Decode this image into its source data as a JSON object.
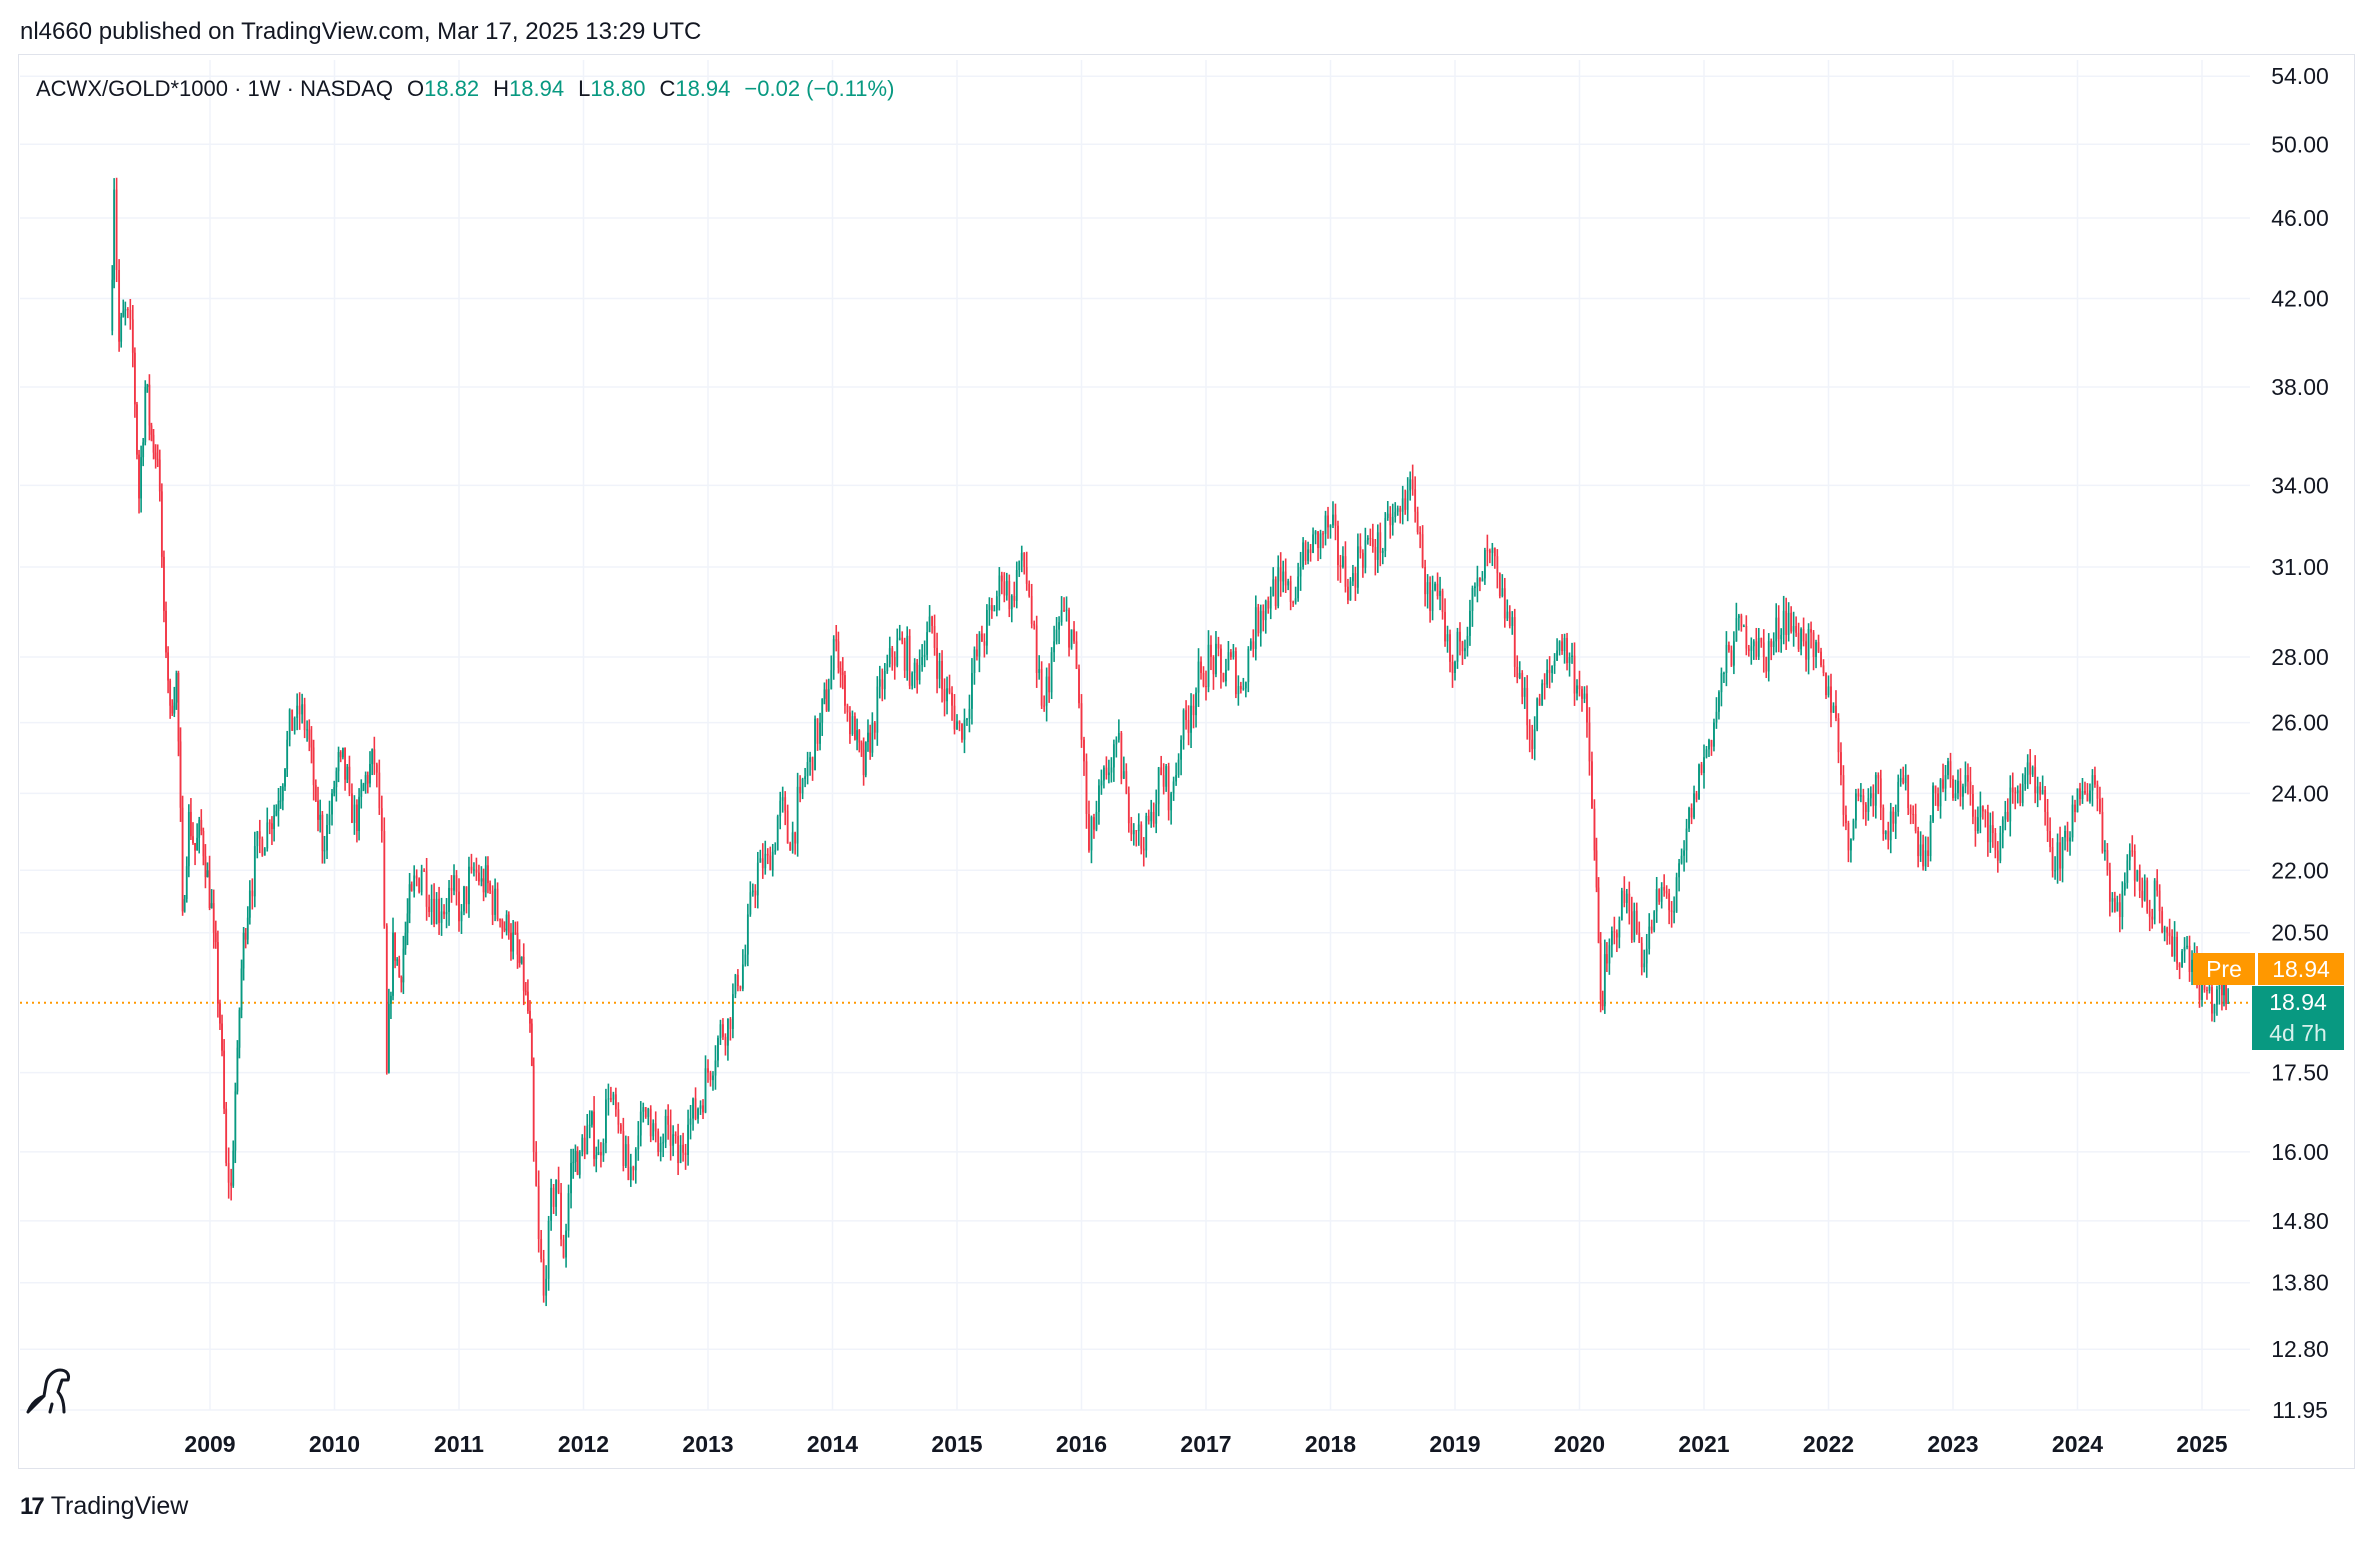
{
  "header": {
    "publisher_text": "nl4660 published on TradingView.com, Mar 17, 2025 13:29 UTC"
  },
  "symbol": {
    "name": "ACWX/GOLD*1000 · 1W · NASDAQ",
    "open_label": "O",
    "open": "18.82",
    "high_label": "H",
    "high": "18.94",
    "low_label": "L",
    "low": "18.80",
    "close_label": "C",
    "close": "18.94",
    "change": "−0.02 (−0.11%)"
  },
  "price_badges": {
    "pre_label": "Pre",
    "pre_price": "18.94",
    "last_price": "18.94",
    "countdown": "4d 7h"
  },
  "footer": {
    "brand": "TradingView"
  },
  "colors": {
    "up": "#089981",
    "down": "#f23645",
    "pre": "#ff9800",
    "grid": "#f0f3fa",
    "text": "#131722"
  },
  "chart_data": {
    "type": "candlestick",
    "title": "ACWX/GOLD*1000 · 1W · NASDAQ",
    "y_scale": "log",
    "ylim": [
      11.95,
      55.0
    ],
    "y_ticks": [
      "54.00",
      "50.00",
      "46.00",
      "42.00",
      "38.00",
      "34.00",
      "31.00",
      "28.00",
      "26.00",
      "24.00",
      "22.00",
      "20.50",
      "17.50",
      "16.00",
      "14.80",
      "13.80",
      "12.80",
      "11.95"
    ],
    "x_ticks": [
      "2009",
      "2010",
      "2011",
      "2012",
      "2013",
      "2014",
      "2015",
      "2016",
      "2017",
      "2018",
      "2019",
      "2020",
      "2021",
      "2022",
      "2023",
      "2024",
      "2025"
    ],
    "xlim": [
      2008.17,
      2025.33
    ],
    "current_price_line": 18.94,
    "series": [
      {
        "points": [
          {
            "t": 2008.2,
            "v": 40.5
          },
          {
            "t": 2008.23,
            "v": 47.5
          },
          {
            "t": 2008.27,
            "v": 40.0
          },
          {
            "t": 2008.32,
            "v": 41.5
          },
          {
            "t": 2008.38,
            "v": 39.5
          },
          {
            "t": 2008.43,
            "v": 33.5
          },
          {
            "t": 2008.48,
            "v": 38.0
          },
          {
            "t": 2008.53,
            "v": 36.0
          },
          {
            "t": 2008.58,
            "v": 35.0
          },
          {
            "t": 2008.63,
            "v": 29.5
          },
          {
            "t": 2008.68,
            "v": 26.5
          },
          {
            "t": 2008.73,
            "v": 27.5
          },
          {
            "t": 2008.78,
            "v": 21.0
          },
          {
            "t": 2008.83,
            "v": 23.5
          },
          {
            "t": 2008.88,
            "v": 22.5
          },
          {
            "t": 2008.93,
            "v": 23.0
          },
          {
            "t": 2008.98,
            "v": 22.0
          },
          {
            "t": 2009.03,
            "v": 20.5
          },
          {
            "t": 2009.08,
            "v": 18.5
          },
          {
            "t": 2009.13,
            "v": 15.8
          },
          {
            "t": 2009.17,
            "v": 15.4
          },
          {
            "t": 2009.22,
            "v": 18.0
          },
          {
            "t": 2009.27,
            "v": 20.5
          },
          {
            "t": 2009.32,
            "v": 21.5
          },
          {
            "t": 2009.4,
            "v": 22.8
          },
          {
            "t": 2009.48,
            "v": 23.2
          },
          {
            "t": 2009.55,
            "v": 23.8
          },
          {
            "t": 2009.62,
            "v": 25.5
          },
          {
            "t": 2009.7,
            "v": 26.5
          },
          {
            "t": 2009.78,
            "v": 25.8
          },
          {
            "t": 2009.85,
            "v": 23.8
          },
          {
            "t": 2009.92,
            "v": 22.5
          },
          {
            "t": 2009.98,
            "v": 24.0
          },
          {
            "t": 2010.05,
            "v": 25.0
          },
          {
            "t": 2010.12,
            "v": 24.0
          },
          {
            "t": 2010.18,
            "v": 23.0
          },
          {
            "t": 2010.25,
            "v": 24.5
          },
          {
            "t": 2010.32,
            "v": 24.8
          },
          {
            "t": 2010.38,
            "v": 23.0
          },
          {
            "t": 2010.42,
            "v": 17.5
          },
          {
            "t": 2010.47,
            "v": 20.5
          },
          {
            "t": 2010.52,
            "v": 19.5
          },
          {
            "t": 2010.57,
            "v": 20.5
          },
          {
            "t": 2010.62,
            "v": 21.5
          },
          {
            "t": 2010.7,
            "v": 22.0
          },
          {
            "t": 2010.78,
            "v": 21.3
          },
          {
            "t": 2010.86,
            "v": 21.0
          },
          {
            "t": 2010.94,
            "v": 21.5
          },
          {
            "t": 2011.02,
            "v": 21.0
          },
          {
            "t": 2011.1,
            "v": 22.0
          },
          {
            "t": 2011.18,
            "v": 21.8
          },
          {
            "t": 2011.25,
            "v": 21.5
          },
          {
            "t": 2011.33,
            "v": 20.8
          },
          {
            "t": 2011.4,
            "v": 20.5
          },
          {
            "t": 2011.47,
            "v": 20.0
          },
          {
            "t": 2011.52,
            "v": 19.2
          },
          {
            "t": 2011.57,
            "v": 18.5
          },
          {
            "t": 2011.6,
            "v": 16.0
          },
          {
            "t": 2011.64,
            "v": 14.5
          },
          {
            "t": 2011.68,
            "v": 13.6
          },
          {
            "t": 2011.72,
            "v": 14.8
          },
          {
            "t": 2011.78,
            "v": 15.5
          },
          {
            "t": 2011.84,
            "v": 14.2
          },
          {
            "t": 2011.9,
            "v": 15.8
          },
          {
            "t": 2011.97,
            "v": 16.0
          },
          {
            "t": 2012.05,
            "v": 16.5
          },
          {
            "t": 2012.12,
            "v": 16.0
          },
          {
            "t": 2012.2,
            "v": 17.0
          },
          {
            "t": 2012.28,
            "v": 16.5
          },
          {
            "t": 2012.36,
            "v": 15.5
          },
          {
            "t": 2012.44,
            "v": 16.3
          },
          {
            "t": 2012.52,
            "v": 16.8
          },
          {
            "t": 2012.6,
            "v": 16.0
          },
          {
            "t": 2012.68,
            "v": 16.5
          },
          {
            "t": 2012.76,
            "v": 15.8
          },
          {
            "t": 2012.84,
            "v": 16.5
          },
          {
            "t": 2012.92,
            "v": 16.8
          },
          {
            "t": 2013.0,
            "v": 17.5
          },
          {
            "t": 2013.08,
            "v": 18.2
          },
          {
            "t": 2013.16,
            "v": 18.6
          },
          {
            "t": 2013.24,
            "v": 19.3
          },
          {
            "t": 2013.3,
            "v": 20.0
          },
          {
            "t": 2013.36,
            "v": 21.5
          },
          {
            "t": 2013.42,
            "v": 22.3
          },
          {
            "t": 2013.5,
            "v": 22.0
          },
          {
            "t": 2013.58,
            "v": 23.8
          },
          {
            "t": 2013.66,
            "v": 22.5
          },
          {
            "t": 2013.74,
            "v": 24.0
          },
          {
            "t": 2013.82,
            "v": 25.0
          },
          {
            "t": 2013.9,
            "v": 26.0
          },
          {
            "t": 2013.97,
            "v": 27.0
          },
          {
            "t": 2014.03,
            "v": 28.5
          },
          {
            "t": 2014.1,
            "v": 26.5
          },
          {
            "t": 2014.18,
            "v": 25.5
          },
          {
            "t": 2014.25,
            "v": 24.5
          },
          {
            "t": 2014.32,
            "v": 26.0
          },
          {
            "t": 2014.4,
            "v": 27.0
          },
          {
            "t": 2014.48,
            "v": 28.0
          },
          {
            "t": 2014.56,
            "v": 28.5
          },
          {
            "t": 2014.64,
            "v": 27.5
          },
          {
            "t": 2014.72,
            "v": 28.0
          },
          {
            "t": 2014.8,
            "v": 29.0
          },
          {
            "t": 2014.88,
            "v": 27.0
          },
          {
            "t": 2014.96,
            "v": 26.5
          },
          {
            "t": 2015.04,
            "v": 25.5
          },
          {
            "t": 2015.12,
            "v": 27.5
          },
          {
            "t": 2015.2,
            "v": 28.5
          },
          {
            "t": 2015.28,
            "v": 29.5
          },
          {
            "t": 2015.36,
            "v": 30.5
          },
          {
            "t": 2015.44,
            "v": 30.0
          },
          {
            "t": 2015.52,
            "v": 31.5
          },
          {
            "t": 2015.58,
            "v": 30.0
          },
          {
            "t": 2015.64,
            "v": 27.5
          },
          {
            "t": 2015.7,
            "v": 26.5
          },
          {
            "t": 2015.78,
            "v": 28.5
          },
          {
            "t": 2015.86,
            "v": 29.5
          },
          {
            "t": 2015.94,
            "v": 28.5
          },
          {
            "t": 2016.0,
            "v": 25.5
          },
          {
            "t": 2016.06,
            "v": 22.5
          },
          {
            "t": 2016.12,
            "v": 23.5
          },
          {
            "t": 2016.2,
            "v": 24.5
          },
          {
            "t": 2016.28,
            "v": 25.5
          },
          {
            "t": 2016.36,
            "v": 24.0
          },
          {
            "t": 2016.44,
            "v": 23.0
          },
          {
            "t": 2016.5,
            "v": 22.5
          },
          {
            "t": 2016.56,
            "v": 23.5
          },
          {
            "t": 2016.64,
            "v": 24.5
          },
          {
            "t": 2016.72,
            "v": 24.0
          },
          {
            "t": 2016.8,
            "v": 25.5
          },
          {
            "t": 2016.88,
            "v": 26.5
          },
          {
            "t": 2016.96,
            "v": 27.5
          },
          {
            "t": 2017.04,
            "v": 28.0
          },
          {
            "t": 2017.12,
            "v": 27.5
          },
          {
            "t": 2017.2,
            "v": 28.0
          },
          {
            "t": 2017.28,
            "v": 27.0
          },
          {
            "t": 2017.36,
            "v": 28.5
          },
          {
            "t": 2017.44,
            "v": 29.5
          },
          {
            "t": 2017.52,
            "v": 30.0
          },
          {
            "t": 2017.6,
            "v": 30.5
          },
          {
            "t": 2017.68,
            "v": 29.8
          },
          {
            "t": 2017.76,
            "v": 31.0
          },
          {
            "t": 2017.84,
            "v": 31.5
          },
          {
            "t": 2017.92,
            "v": 32.2
          },
          {
            "t": 2018.0,
            "v": 32.5
          },
          {
            "t": 2018.08,
            "v": 31.0
          },
          {
            "t": 2018.16,
            "v": 30.5
          },
          {
            "t": 2018.24,
            "v": 31.5
          },
          {
            "t": 2018.32,
            "v": 32.0
          },
          {
            "t": 2018.4,
            "v": 31.5
          },
          {
            "t": 2018.48,
            "v": 32.5
          },
          {
            "t": 2018.56,
            "v": 33.0
          },
          {
            "t": 2018.62,
            "v": 33.8
          },
          {
            "t": 2018.68,
            "v": 33.0
          },
          {
            "t": 2018.74,
            "v": 31.0
          },
          {
            "t": 2018.8,
            "v": 29.5
          },
          {
            "t": 2018.86,
            "v": 30.0
          },
          {
            "t": 2018.92,
            "v": 28.5
          },
          {
            "t": 2018.98,
            "v": 27.5
          },
          {
            "t": 2019.04,
            "v": 28.5
          },
          {
            "t": 2019.12,
            "v": 29.5
          },
          {
            "t": 2019.2,
            "v": 30.5
          },
          {
            "t": 2019.28,
            "v": 31.5
          },
          {
            "t": 2019.36,
            "v": 30.0
          },
          {
            "t": 2019.44,
            "v": 29.0
          },
          {
            "t": 2019.52,
            "v": 27.5
          },
          {
            "t": 2019.6,
            "v": 25.5
          },
          {
            "t": 2019.68,
            "v": 26.5
          },
          {
            "t": 2019.76,
            "v": 27.5
          },
          {
            "t": 2019.84,
            "v": 28.5
          },
          {
            "t": 2019.92,
            "v": 28.0
          },
          {
            "t": 2020.0,
            "v": 27.0
          },
          {
            "t": 2020.06,
            "v": 26.0
          },
          {
            "t": 2020.12,
            "v": 22.5
          },
          {
            "t": 2020.17,
            "v": 19.0
          },
          {
            "t": 2020.22,
            "v": 19.8
          },
          {
            "t": 2020.28,
            "v": 20.5
          },
          {
            "t": 2020.34,
            "v": 21.5
          },
          {
            "t": 2020.4,
            "v": 21.0
          },
          {
            "t": 2020.46,
            "v": 20.5
          },
          {
            "t": 2020.52,
            "v": 19.8
          },
          {
            "t": 2020.6,
            "v": 21.0
          },
          {
            "t": 2020.68,
            "v": 21.5
          },
          {
            "t": 2020.76,
            "v": 21.0
          },
          {
            "t": 2020.84,
            "v": 22.5
          },
          {
            "t": 2020.92,
            "v": 24.0
          },
          {
            "t": 2021.0,
            "v": 25.0
          },
          {
            "t": 2021.08,
            "v": 26.0
          },
          {
            "t": 2021.16,
            "v": 27.5
          },
          {
            "t": 2021.24,
            "v": 28.5
          },
          {
            "t": 2021.32,
            "v": 29.0
          },
          {
            "t": 2021.4,
            "v": 28.5
          },
          {
            "t": 2021.48,
            "v": 28.0
          },
          {
            "t": 2021.56,
            "v": 28.5
          },
          {
            "t": 2021.64,
            "v": 29.5
          },
          {
            "t": 2021.72,
            "v": 29.0
          },
          {
            "t": 2021.8,
            "v": 28.5
          },
          {
            "t": 2021.88,
            "v": 28.0
          },
          {
            "t": 2021.96,
            "v": 27.5
          },
          {
            "t": 2022.04,
            "v": 26.5
          },
          {
            "t": 2022.1,
            "v": 24.5
          },
          {
            "t": 2022.16,
            "v": 22.5
          },
          {
            "t": 2022.22,
            "v": 24.0
          },
          {
            "t": 2022.3,
            "v": 23.5
          },
          {
            "t": 2022.38,
            "v": 24.5
          },
          {
            "t": 2022.46,
            "v": 23.0
          },
          {
            "t": 2022.54,
            "v": 23.5
          },
          {
            "t": 2022.62,
            "v": 24.5
          },
          {
            "t": 2022.7,
            "v": 23.0
          },
          {
            "t": 2022.78,
            "v": 22.5
          },
          {
            "t": 2022.86,
            "v": 24.0
          },
          {
            "t": 2022.94,
            "v": 24.5
          },
          {
            "t": 2023.02,
            "v": 24.0
          },
          {
            "t": 2023.1,
            "v": 24.5
          },
          {
            "t": 2023.18,
            "v": 23.0
          },
          {
            "t": 2023.26,
            "v": 23.5
          },
          {
            "t": 2023.34,
            "v": 22.5
          },
          {
            "t": 2023.42,
            "v": 23.5
          },
          {
            "t": 2023.5,
            "v": 24.0
          },
          {
            "t": 2023.58,
            "v": 24.5
          },
          {
            "t": 2023.66,
            "v": 24.0
          },
          {
            "t": 2023.74,
            "v": 23.5
          },
          {
            "t": 2023.82,
            "v": 22.0
          },
          {
            "t": 2023.9,
            "v": 23.0
          },
          {
            "t": 2023.98,
            "v": 23.5
          },
          {
            "t": 2024.06,
            "v": 24.0
          },
          {
            "t": 2024.12,
            "v": 24.5
          },
          {
            "t": 2024.18,
            "v": 23.5
          },
          {
            "t": 2024.24,
            "v": 22.0
          },
          {
            "t": 2024.3,
            "v": 21.0
          },
          {
            "t": 2024.36,
            "v": 21.5
          },
          {
            "t": 2024.42,
            "v": 22.5
          },
          {
            "t": 2024.48,
            "v": 22.0
          },
          {
            "t": 2024.56,
            "v": 21.0
          },
          {
            "t": 2024.64,
            "v": 21.5
          },
          {
            "t": 2024.72,
            "v": 20.5
          },
          {
            "t": 2024.8,
            "v": 19.8
          },
          {
            "t": 2024.88,
            "v": 20.2
          },
          {
            "t": 2024.96,
            "v": 19.5
          },
          {
            "t": 2025.04,
            "v": 19.2
          },
          {
            "t": 2025.1,
            "v": 18.9
          },
          {
            "t": 2025.16,
            "v": 19.1
          },
          {
            "t": 2025.21,
            "v": 18.94
          }
        ]
      }
    ]
  }
}
